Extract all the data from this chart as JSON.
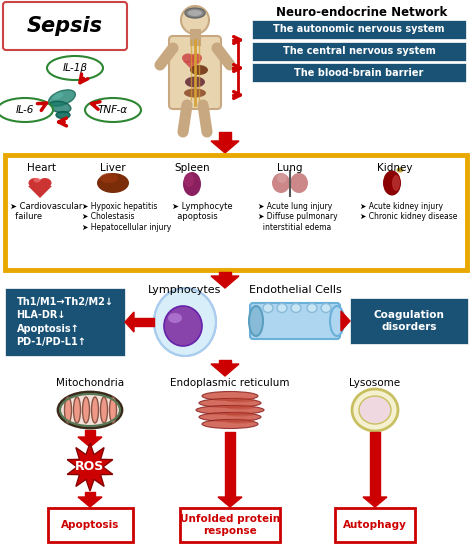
{
  "bg_color": "#ffffff",
  "blue_color": "#1a5276",
  "red_color": "#cc0000",
  "orange_color": "#e8a800",
  "white": "#ffffff",
  "neuro_title": "Neuro-endocrine Network",
  "neuro_items": [
    "The autonomic nervous system",
    "The central nervous system",
    "The blood-brain barrier"
  ],
  "sepsis_label": "Sepsis",
  "cytokines": [
    "IL-1β",
    "IL-6",
    "TNF-α"
  ],
  "organ_names": [
    "Heart",
    "Liver",
    "Spleen",
    "Lung",
    "Kidney"
  ],
  "organ_bullets": [
    "➤ Cardiovascular\n  failure",
    "➤ Hypoxic hepatitis\n➤ Cholestasis\n➤ Hepatocellular injury",
    "➤ Lymphocyte\n  apoptosis",
    "➤ Acute lung injury\n➤ Diffuse pulmonary\n  interstitial edema",
    "➤ Acute kidney injury\n➤ Chronic kidney disease"
  ],
  "left_blue_text": "Th1/M1→Th2/M2↓\nHLA-DR↓\nApoptosis↑\nPD-1/PD-L1↑",
  "right_blue_text": "Coagulation\ndisorders",
  "lymphocytes_label": "Lymphocytes",
  "endothelial_label": "Endothelial Cells",
  "organelle_labels": [
    "Mitochondria",
    "Endoplasmic reticulum",
    "Lysosome"
  ],
  "outcome_labels": [
    "Apoptosis",
    "Unfolded protein\nresponse",
    "Autophagy"
  ],
  "ros_label": "ROS"
}
